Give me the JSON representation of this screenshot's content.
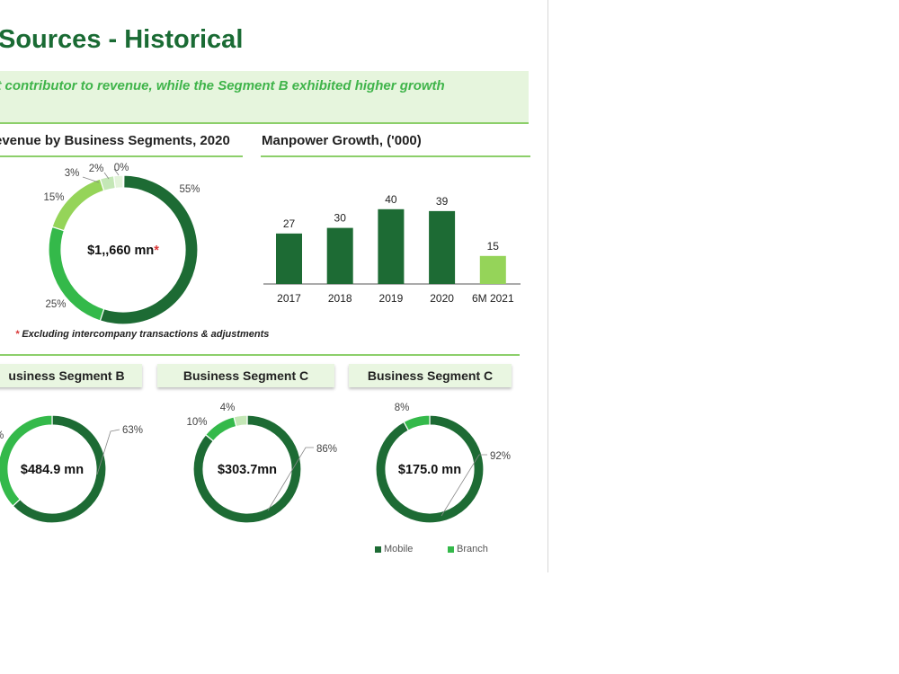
{
  "page": {
    "title": "Sources - Historical",
    "banner": "st contributor to revenue, while the Segment B exhibited higher growth",
    "footnote_mark": "*",
    "footnote_text": "Excluding intercompany transactions & adjustments"
  },
  "colors": {
    "dark_green": "#1d6b34",
    "mid_green": "#34b94a",
    "light_green": "#95d459",
    "pale_green": "#c4e7b6",
    "faint_green": "#e3f3da"
  },
  "chart_data": [
    {
      "type": "pie",
      "title": "evenue by Business Segments, 2020",
      "center_label": "$1,,660 mn",
      "center_mark": "*",
      "values": [
        55,
        25,
        15,
        3,
        2,
        0
      ],
      "labels": [
        "55%",
        "25%",
        "15%",
        "3%",
        "2%",
        "0%"
      ]
    },
    {
      "type": "bar",
      "title": "Manpower Growth, ('000)",
      "categories": [
        "2017",
        "2018",
        "2019",
        "2020",
        "6M 2021"
      ],
      "values": [
        27,
        30,
        40,
        39,
        15
      ],
      "ylim": [
        0,
        50
      ]
    },
    {
      "type": "pie",
      "title": "usiness Segment B",
      "center_label": "$484.9 mn",
      "values": [
        63,
        37
      ],
      "labels": [
        "63%",
        "%"
      ]
    },
    {
      "type": "pie",
      "title": "Business Segment C",
      "center_label": "$303.7mn",
      "values": [
        86,
        10,
        4
      ],
      "labels": [
        "86%",
        "10%",
        "4%"
      ]
    },
    {
      "type": "pie",
      "title": "Business Segment C",
      "center_label": "$175.0 mn",
      "values": [
        92,
        8
      ],
      "labels": [
        "92%",
        "8%"
      ]
    }
  ],
  "legend": [
    {
      "label": "Mobile",
      "color": "#1d6b34"
    },
    {
      "label": "Branch",
      "color": "#34b94a"
    }
  ]
}
